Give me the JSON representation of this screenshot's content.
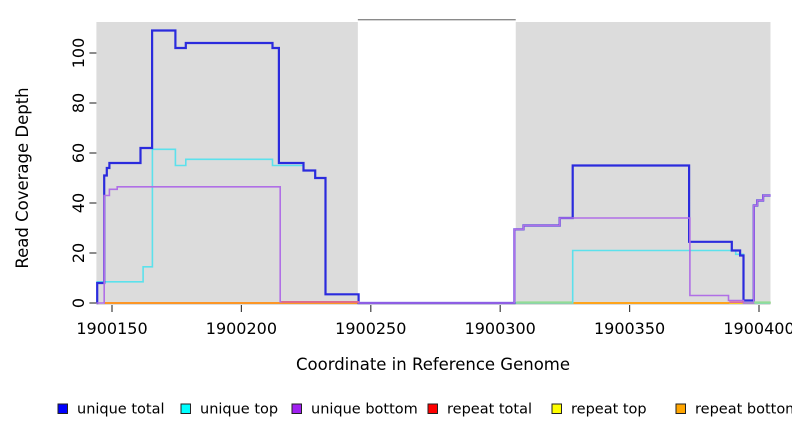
{
  "chart_data": {
    "type": "line",
    "step": true,
    "title": "",
    "xlabel": "Coordinate in Reference Genome",
    "ylabel": "Read Coverage Depth",
    "x_tick_labels": [
      "1900150",
      "1900200",
      "1900250",
      "1900300",
      "1900350",
      "1900400"
    ],
    "x_tick_values": [
      1900150,
      1900200,
      1900250,
      1900300,
      1900350,
      1900400
    ],
    "y_tick_labels": [
      "0",
      "20",
      "40",
      "60",
      "80",
      "100"
    ],
    "y_tick_values": [
      0,
      20,
      40,
      60,
      80,
      100
    ],
    "xlim": [
      1900144,
      1900404.5
    ],
    "ylim": [
      0,
      112
    ],
    "grid": false,
    "legend_position": "bottom",
    "plot_bg_color": "#dcdcdc",
    "masked_region": {
      "x1": 1900245,
      "x2": 1900306,
      "fill": "#ffffff",
      "border_color": "#8a8a8a"
    },
    "series": [
      {
        "name": "repeat total",
        "legend_color": "#ff0000",
        "line_color": "#f03a52",
        "width": 1.8,
        "points": [
          [
            1900147,
            0
          ],
          [
            1900404.5,
            0
          ]
        ]
      },
      {
        "name": "repeat top",
        "legend_color": "#ffff00",
        "line_color": "#ffee00",
        "width": 1.8,
        "points": [
          [
            1900306,
            0
          ],
          [
            1900404.5,
            0
          ]
        ]
      },
      {
        "name": "repeat bottom",
        "legend_color": "#ffa500",
        "line_color": "#ff9e1b",
        "width": 1.8,
        "points": [
          [
            1900147,
            0
          ],
          [
            1900388.5,
            0
          ]
        ]
      },
      {
        "name": "unique top",
        "legend_color": "#00ffff",
        "line_color": "#5ce1ec",
        "width": 1.6,
        "points": [
          [
            1900144,
            0
          ],
          [
            1900144.3,
            8.5
          ],
          [
            1900162,
            14.5
          ],
          [
            1900165.6,
            61.5
          ],
          [
            1900174.5,
            55
          ],
          [
            1900178.5,
            57.5
          ],
          [
            1900212,
            55
          ],
          [
            1900224,
            53
          ],
          [
            1900228.5,
            50
          ],
          [
            1900232.5,
            3.5
          ],
          [
            1900245.3,
            0
          ],
          [
            1900328,
            21
          ],
          [
            1900391,
            19.5
          ],
          [
            1900394,
            0
          ],
          [
            1900404.5,
            0
          ]
        ]
      },
      {
        "name": "unique total",
        "legend_color": "#0000ff",
        "line_color": "#2b2bdd",
        "width": 2.2,
        "points": [
          [
            1900144,
            0
          ],
          [
            1900144.3,
            8
          ],
          [
            1900147,
            51
          ],
          [
            1900148,
            54
          ],
          [
            1900149,
            56
          ],
          [
            1900161,
            62
          ],
          [
            1900165.5,
            109
          ],
          [
            1900174.5,
            102
          ],
          [
            1900178.5,
            104
          ],
          [
            1900212,
            102
          ],
          [
            1900214.5,
            56
          ],
          [
            1900224,
            53
          ],
          [
            1900228.5,
            50
          ],
          [
            1900232.5,
            3.5
          ],
          [
            1900245.3,
            0
          ],
          [
            1900305.5,
            29.5
          ],
          [
            1900309,
            31
          ],
          [
            1900323,
            34
          ],
          [
            1900328,
            55
          ],
          [
            1900373,
            24.5
          ],
          [
            1900389.5,
            21
          ],
          [
            1900392.7,
            19
          ],
          [
            1900394,
            1
          ],
          [
            1900398,
            39
          ],
          [
            1900399.3,
            41
          ],
          [
            1900401.6,
            43
          ],
          [
            1900404.5,
            43
          ]
        ]
      },
      {
        "name": "unique bottom",
        "legend_color": "#a020f0",
        "line_color": "#b06fe6",
        "width": 1.6,
        "points": [
          [
            1900144,
            0
          ],
          [
            1900147,
            43
          ],
          [
            1900149,
            45.5
          ],
          [
            1900152,
            46.5
          ],
          [
            1900215,
            0.5
          ],
          [
            1900245.3,
            0
          ],
          [
            1900305.5,
            29.5
          ],
          [
            1900309,
            31
          ],
          [
            1900323,
            34
          ],
          [
            1900373.3,
            3
          ],
          [
            1900388.2,
            1
          ],
          [
            1900394,
            0
          ],
          [
            1900398,
            39
          ],
          [
            1900399.3,
            41
          ],
          [
            1900401.6,
            43
          ],
          [
            1900404.5,
            43
          ]
        ]
      }
    ],
    "baseline_blend_segments": [
      {
        "x1": 1900215.5,
        "x2": 1900245.3,
        "y": 0.4,
        "color": "#e26a84"
      },
      {
        "x1": 1900306.2,
        "x2": 1900327.8,
        "y": 0.3,
        "color": "#93dc96"
      },
      {
        "x1": 1900388.5,
        "x2": 1900394,
        "y": 0.3,
        "color": "#dd6b9b"
      },
      {
        "x1": 1900398,
        "x2": 1900404.5,
        "y": 0.3,
        "color": "#93dc96"
      }
    ]
  },
  "legend": {
    "items": [
      {
        "label": "unique total",
        "color": "#0000ff"
      },
      {
        "label": "unique top",
        "color": "#00ffff"
      },
      {
        "label": "unique bottom",
        "color": "#a020f0"
      },
      {
        "label": "repeat total",
        "color": "#ff0000"
      },
      {
        "label": "repeat top",
        "color": "#ffff00"
      },
      {
        "label": "repeat bottom",
        "color": "#ffa500"
      }
    ]
  }
}
